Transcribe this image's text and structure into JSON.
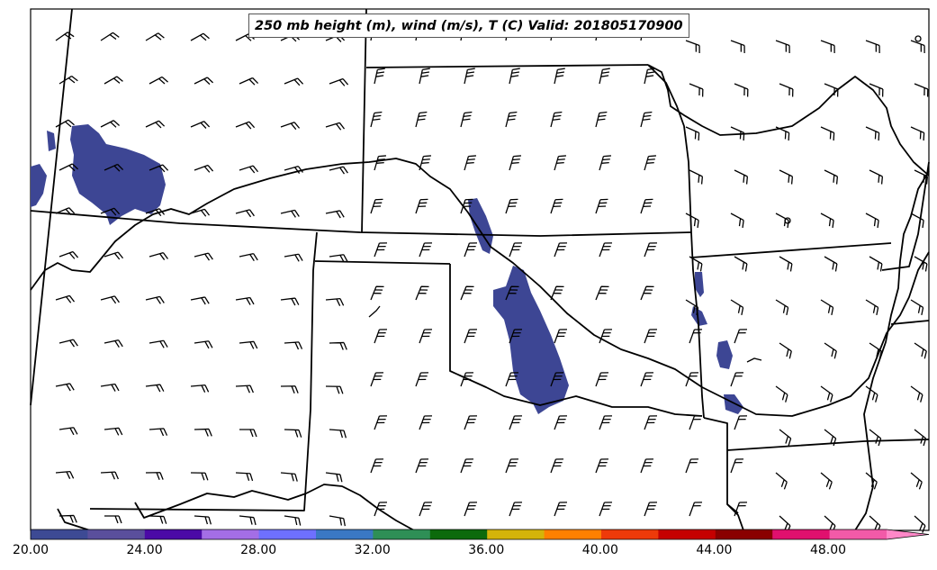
{
  "title": "250 mb height (m), wind (m/s), T (C) Valid: 201805170900",
  "colorbar": {
    "ticks": [
      "20.00",
      "24.00",
      "28.00",
      "32.00",
      "36.00",
      "40.00",
      "44.00",
      "48.00"
    ],
    "tick_values": [
      20,
      24,
      28,
      32,
      36,
      40,
      44,
      48
    ],
    "min": 20,
    "max": 52,
    "extend": "max",
    "colors": [
      "#3d4a94",
      "#5a4f9c",
      "#4b0aa6",
      "#a46ee6",
      "#6e70ff",
      "#3a78c4",
      "#2e8f56",
      "#0c6a0c",
      "#d4b40a",
      "#ff8000",
      "#ee3a0a",
      "#c50000",
      "#8a0000",
      "#e0106e",
      "#f25aa8",
      "#ff88c8"
    ]
  },
  "shading_color": "#3d4694",
  "barb_color": "#000000",
  "boundary_color": "#000000"
}
